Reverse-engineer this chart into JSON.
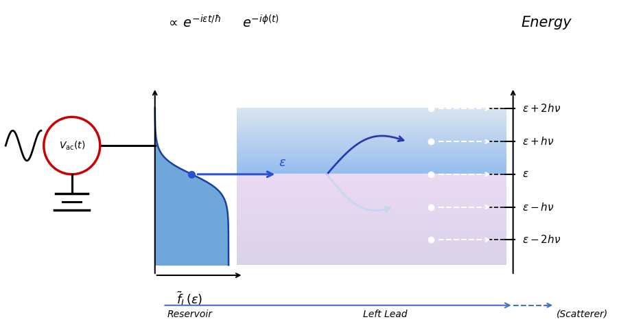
{
  "title": "Energy",
  "reservoir_label": "Reservoir",
  "lead_label": "Left Lead",
  "scatterer_label": "(Scatterer)",
  "fl_label": "$\\tilde{f}_L(\\varepsilon)$",
  "energy_levels": [
    "$\\varepsilon+2h\\nu$",
    "$\\varepsilon+h\\nu$",
    "$\\varepsilon$",
    "$\\varepsilon-h\\nu$",
    "$\\varepsilon-2h\\nu$"
  ],
  "vac_circle_color": "#cc0000",
  "arrow_blue": "#2a50d0",
  "fermi_blue": "#5b9bd5",
  "fermi_outline": "#1a40a0",
  "curve_up_color": "#2a3aaa",
  "curve_dn_color": "#c8d4f0",
  "bottom_arrow_color": "#4472c4",
  "energy_label_color": "#2a50d0",
  "bg_color": "white"
}
